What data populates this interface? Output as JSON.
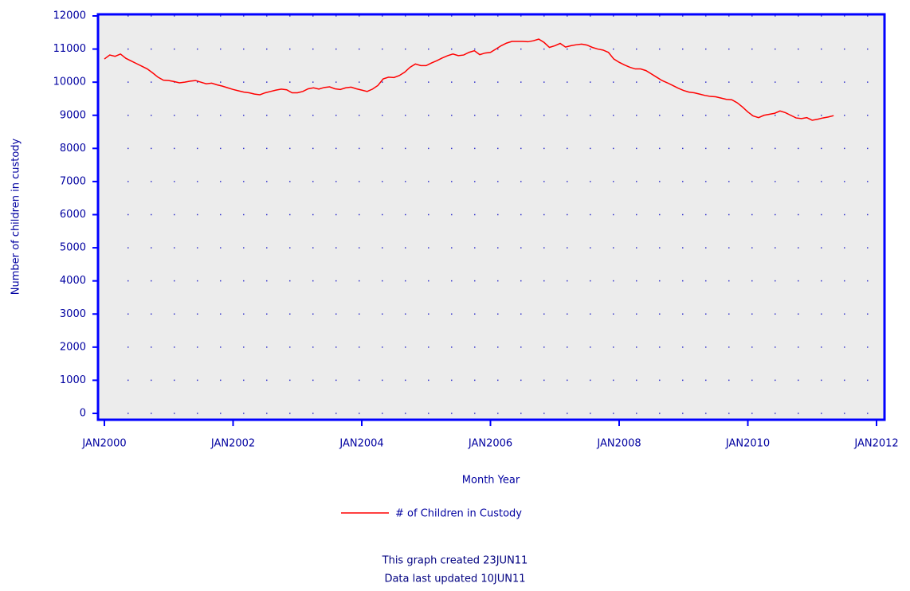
{
  "chart_data": {
    "type": "line",
    "x_label": "Month Year",
    "y_label": "Number of children in custody",
    "footnotes": [
      "This graph created 23JUN11",
      "Data last updated 10JUN11"
    ],
    "xlim": [
      "JAN2000",
      "JAN2012"
    ],
    "xticks": [
      "JAN2000",
      "JAN2002",
      "JAN2004",
      "JAN2006",
      "JAN2008",
      "JAN2010",
      "JAN2012"
    ],
    "ylim": [
      0,
      12000
    ],
    "yticks": [
      0,
      1000,
      2000,
      3000,
      4000,
      5000,
      6000,
      7000,
      8000,
      9000,
      10000,
      11000,
      12000
    ],
    "grid": true,
    "x": [
      "JAN2000",
      "FEB2000",
      "MAR2000",
      "APR2000",
      "MAY2000",
      "JUN2000",
      "JUL2000",
      "AUG2000",
      "SEP2000",
      "OCT2000",
      "NOV2000",
      "DEC2000",
      "JAN2001",
      "FEB2001",
      "MAR2001",
      "APR2001",
      "MAY2001",
      "JUN2001",
      "JUL2001",
      "AUG2001",
      "SEP2001",
      "OCT2001",
      "NOV2001",
      "DEC2001",
      "JAN2002",
      "FEB2002",
      "MAR2002",
      "APR2002",
      "MAY2002",
      "JUN2002",
      "JUL2002",
      "AUG2002",
      "SEP2002",
      "OCT2002",
      "NOV2002",
      "DEC2002",
      "JAN2003",
      "FEB2003",
      "MAR2003",
      "APR2003",
      "MAY2003",
      "JUN2003",
      "JUL2003",
      "AUG2003",
      "SEP2003",
      "OCT2003",
      "NOV2003",
      "DEC2003",
      "JAN2004",
      "FEB2004",
      "MAR2004",
      "APR2004",
      "MAY2004",
      "JUN2004",
      "JUL2004",
      "AUG2004",
      "SEP2004",
      "OCT2004",
      "NOV2004",
      "DEC2004",
      "JAN2005",
      "FEB2005",
      "MAR2005",
      "APR2005",
      "MAY2005",
      "JUN2005",
      "JUL2005",
      "AUG2005",
      "SEP2005",
      "OCT2005",
      "NOV2005",
      "DEC2005",
      "JAN2006",
      "FEB2006",
      "MAR2006",
      "APR2006",
      "MAY2006",
      "JUN2006",
      "JUL2006",
      "AUG2006",
      "SEP2006",
      "OCT2006",
      "NOV2006",
      "DEC2006",
      "JAN2007",
      "FEB2007",
      "MAR2007",
      "APR2007",
      "MAY2007",
      "JUN2007",
      "JUL2007",
      "AUG2007",
      "SEP2007",
      "OCT2007",
      "NOV2007",
      "DEC2007",
      "JAN2008",
      "FEB2008",
      "MAR2008",
      "APR2008",
      "MAY2008",
      "JUN2008",
      "JUL2008",
      "AUG2008",
      "SEP2008",
      "OCT2008",
      "NOV2008",
      "DEC2008",
      "JAN2009",
      "FEB2009",
      "MAR2009",
      "APR2009",
      "MAY2009",
      "JUN2009",
      "JUL2009",
      "AUG2009",
      "SEP2009",
      "OCT2009",
      "NOV2009",
      "DEC2009",
      "JAN2010",
      "FEB2010",
      "MAR2010",
      "APR2010",
      "MAY2010",
      "JUN2010",
      "JUL2010",
      "AUG2010",
      "SEP2010",
      "OCT2010",
      "NOV2010",
      "DEC2010",
      "JAN2011",
      "FEB2011",
      "MAR2011",
      "APR2011",
      "MAY2011"
    ],
    "series": [
      {
        "name": "# of Children in Custody",
        "color": "#ff0000",
        "values": [
          10700,
          10820,
          10780,
          10850,
          10720,
          10640,
          10560,
          10480,
          10400,
          10280,
          10150,
          10060,
          10050,
          10020,
          9980,
          10000,
          10030,
          10050,
          10000,
          9950,
          9970,
          9920,
          9880,
          9830,
          9780,
          9740,
          9700,
          9680,
          9640,
          9620,
          9680,
          9720,
          9760,
          9790,
          9770,
          9680,
          9680,
          9720,
          9800,
          9830,
          9790,
          9840,
          9860,
          9800,
          9780,
          9830,
          9850,
          9800,
          9760,
          9720,
          9790,
          9900,
          10100,
          10150,
          10140,
          10200,
          10300,
          10450,
          10550,
          10500,
          10500,
          10580,
          10650,
          10730,
          10800,
          10850,
          10800,
          10820,
          10900,
          10950,
          10830,
          10880,
          10900,
          11000,
          11100,
          11180,
          11230,
          11230,
          11230,
          11220,
          11250,
          11300,
          11200,
          11050,
          11100,
          11170,
          11060,
          11100,
          11130,
          11150,
          11120,
          11050,
          11000,
          10970,
          10900,
          10700,
          10600,
          10520,
          10450,
          10400,
          10400,
          10350,
          10250,
          10150,
          10050,
          9980,
          9900,
          9820,
          9750,
          9700,
          9680,
          9640,
          9600,
          9570,
          9560,
          9520,
          9480,
          9470,
          9380,
          9250,
          9100,
          8980,
          8930,
          9000,
          9030,
          9060,
          9130,
          9080,
          9000,
          8920,
          8900,
          8930,
          8850,
          8880,
          8920,
          8950,
          8990
        ]
      }
    ]
  }
}
